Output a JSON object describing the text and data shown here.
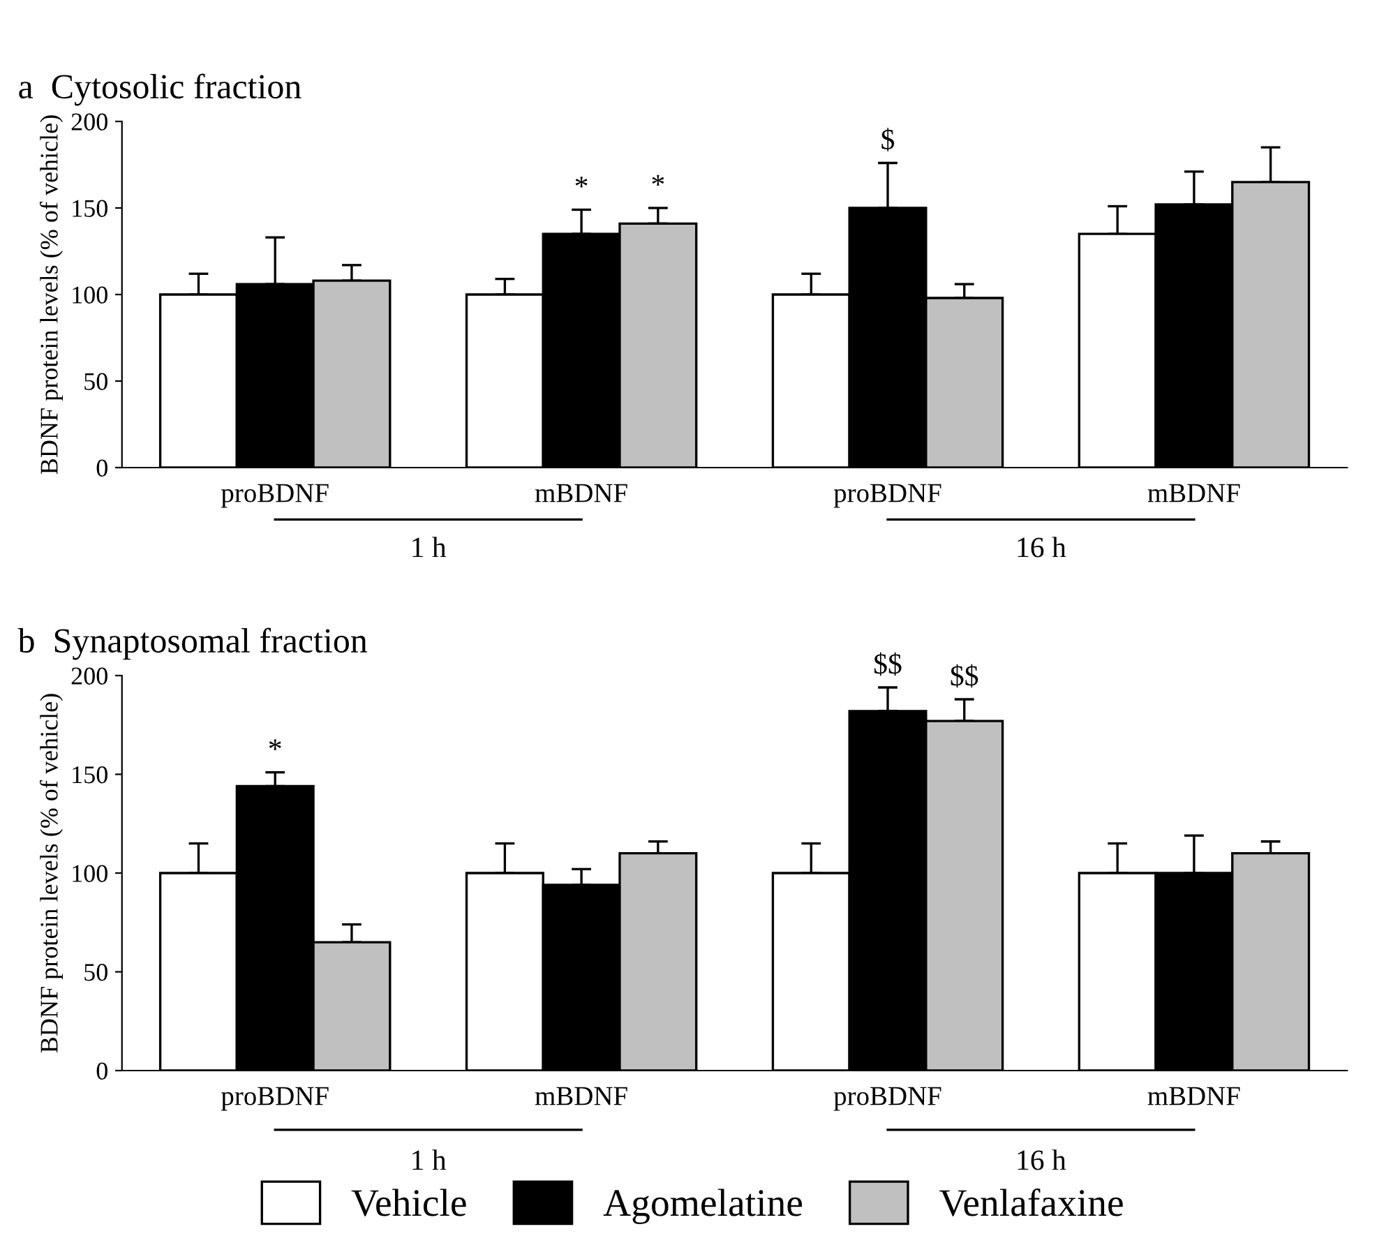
{
  "chart_data": [
    {
      "type": "bar",
      "title": "a  Cytosolic fraction",
      "ylabel": "BDNF protein levels (% of vehicle)",
      "categories": [
        "proBDNF",
        "mBDNF",
        "proBDNF",
        "mBDNF"
      ],
      "ylim": [
        0,
        200
      ],
      "yticks": [
        0,
        50,
        100,
        150,
        200
      ],
      "grid": false,
      "legend": false,
      "annotations": [
        "1 h",
        "16 h"
      ],
      "series": [
        {
          "color": "#ffffff",
          "values": [
            100,
            100,
            100,
            135
          ],
          "errors": [
            [
              100,
              112
            ],
            [
              100,
              109
            ],
            [
              100,
              112
            ],
            [
              135,
              151
            ]
          ],
          "value_labels": [
            null,
            null,
            null,
            null
          ]
        },
        {
          "color": "#000000",
          "values": [
            106,
            135,
            150,
            152
          ],
          "errors": [
            [
              106,
              133
            ],
            [
              135,
              149
            ],
            [
              150,
              176
            ],
            [
              152,
              171
            ]
          ],
          "value_labels": [
            null,
            "*",
            "$",
            null
          ]
        },
        {
          "color": "#c0c0c0",
          "values": [
            108,
            141,
            98,
            165
          ],
          "errors": [
            [
              108,
              117
            ],
            [
              141,
              150
            ],
            [
              98,
              106
            ],
            [
              165,
              185
            ]
          ],
          "value_labels": [
            null,
            "*",
            null,
            null
          ]
        }
      ]
    },
    {
      "type": "bar",
      "title": "b  Synaptosomal fraction",
      "ylabel": "BDNF protein levels (% of vehicle)",
      "categories": [
        "proBDNF",
        "mBDNF",
        "proBDNF",
        "mBDNF"
      ],
      "ylim": [
        0,
        200
      ],
      "yticks": [
        0,
        50,
        100,
        150,
        200
      ],
      "grid": false,
      "legend": "bottom",
      "annotations": [
        "1 h",
        "16 h"
      ],
      "series": [
        {
          "name": "Vehicle",
          "color": "#ffffff",
          "values": [
            100,
            100,
            100,
            100
          ],
          "errors": [
            [
              100,
              115
            ],
            [
              100,
              115
            ],
            [
              100,
              115
            ],
            [
              100,
              115
            ]
          ],
          "value_labels": [
            null,
            null,
            null,
            null
          ]
        },
        {
          "name": "Agomelatine",
          "color": "#000000",
          "values": [
            144,
            94,
            182,
            100
          ],
          "errors": [
            [
              144,
              151
            ],
            [
              94,
              102
            ],
            [
              182,
              194
            ],
            [
              100,
              119
            ]
          ],
          "value_labels": [
            "*",
            null,
            "$$",
            null
          ]
        },
        {
          "name": "Venlafaxine",
          "color": "#c0c0c0",
          "values": [
            65,
            110,
            177,
            110
          ],
          "errors": [
            [
              65,
              74
            ],
            [
              110,
              116
            ],
            [
              177,
              188
            ],
            [
              110,
              116
            ]
          ],
          "value_labels": [
            null,
            null,
            "$$",
            null
          ]
        }
      ]
    }
  ]
}
